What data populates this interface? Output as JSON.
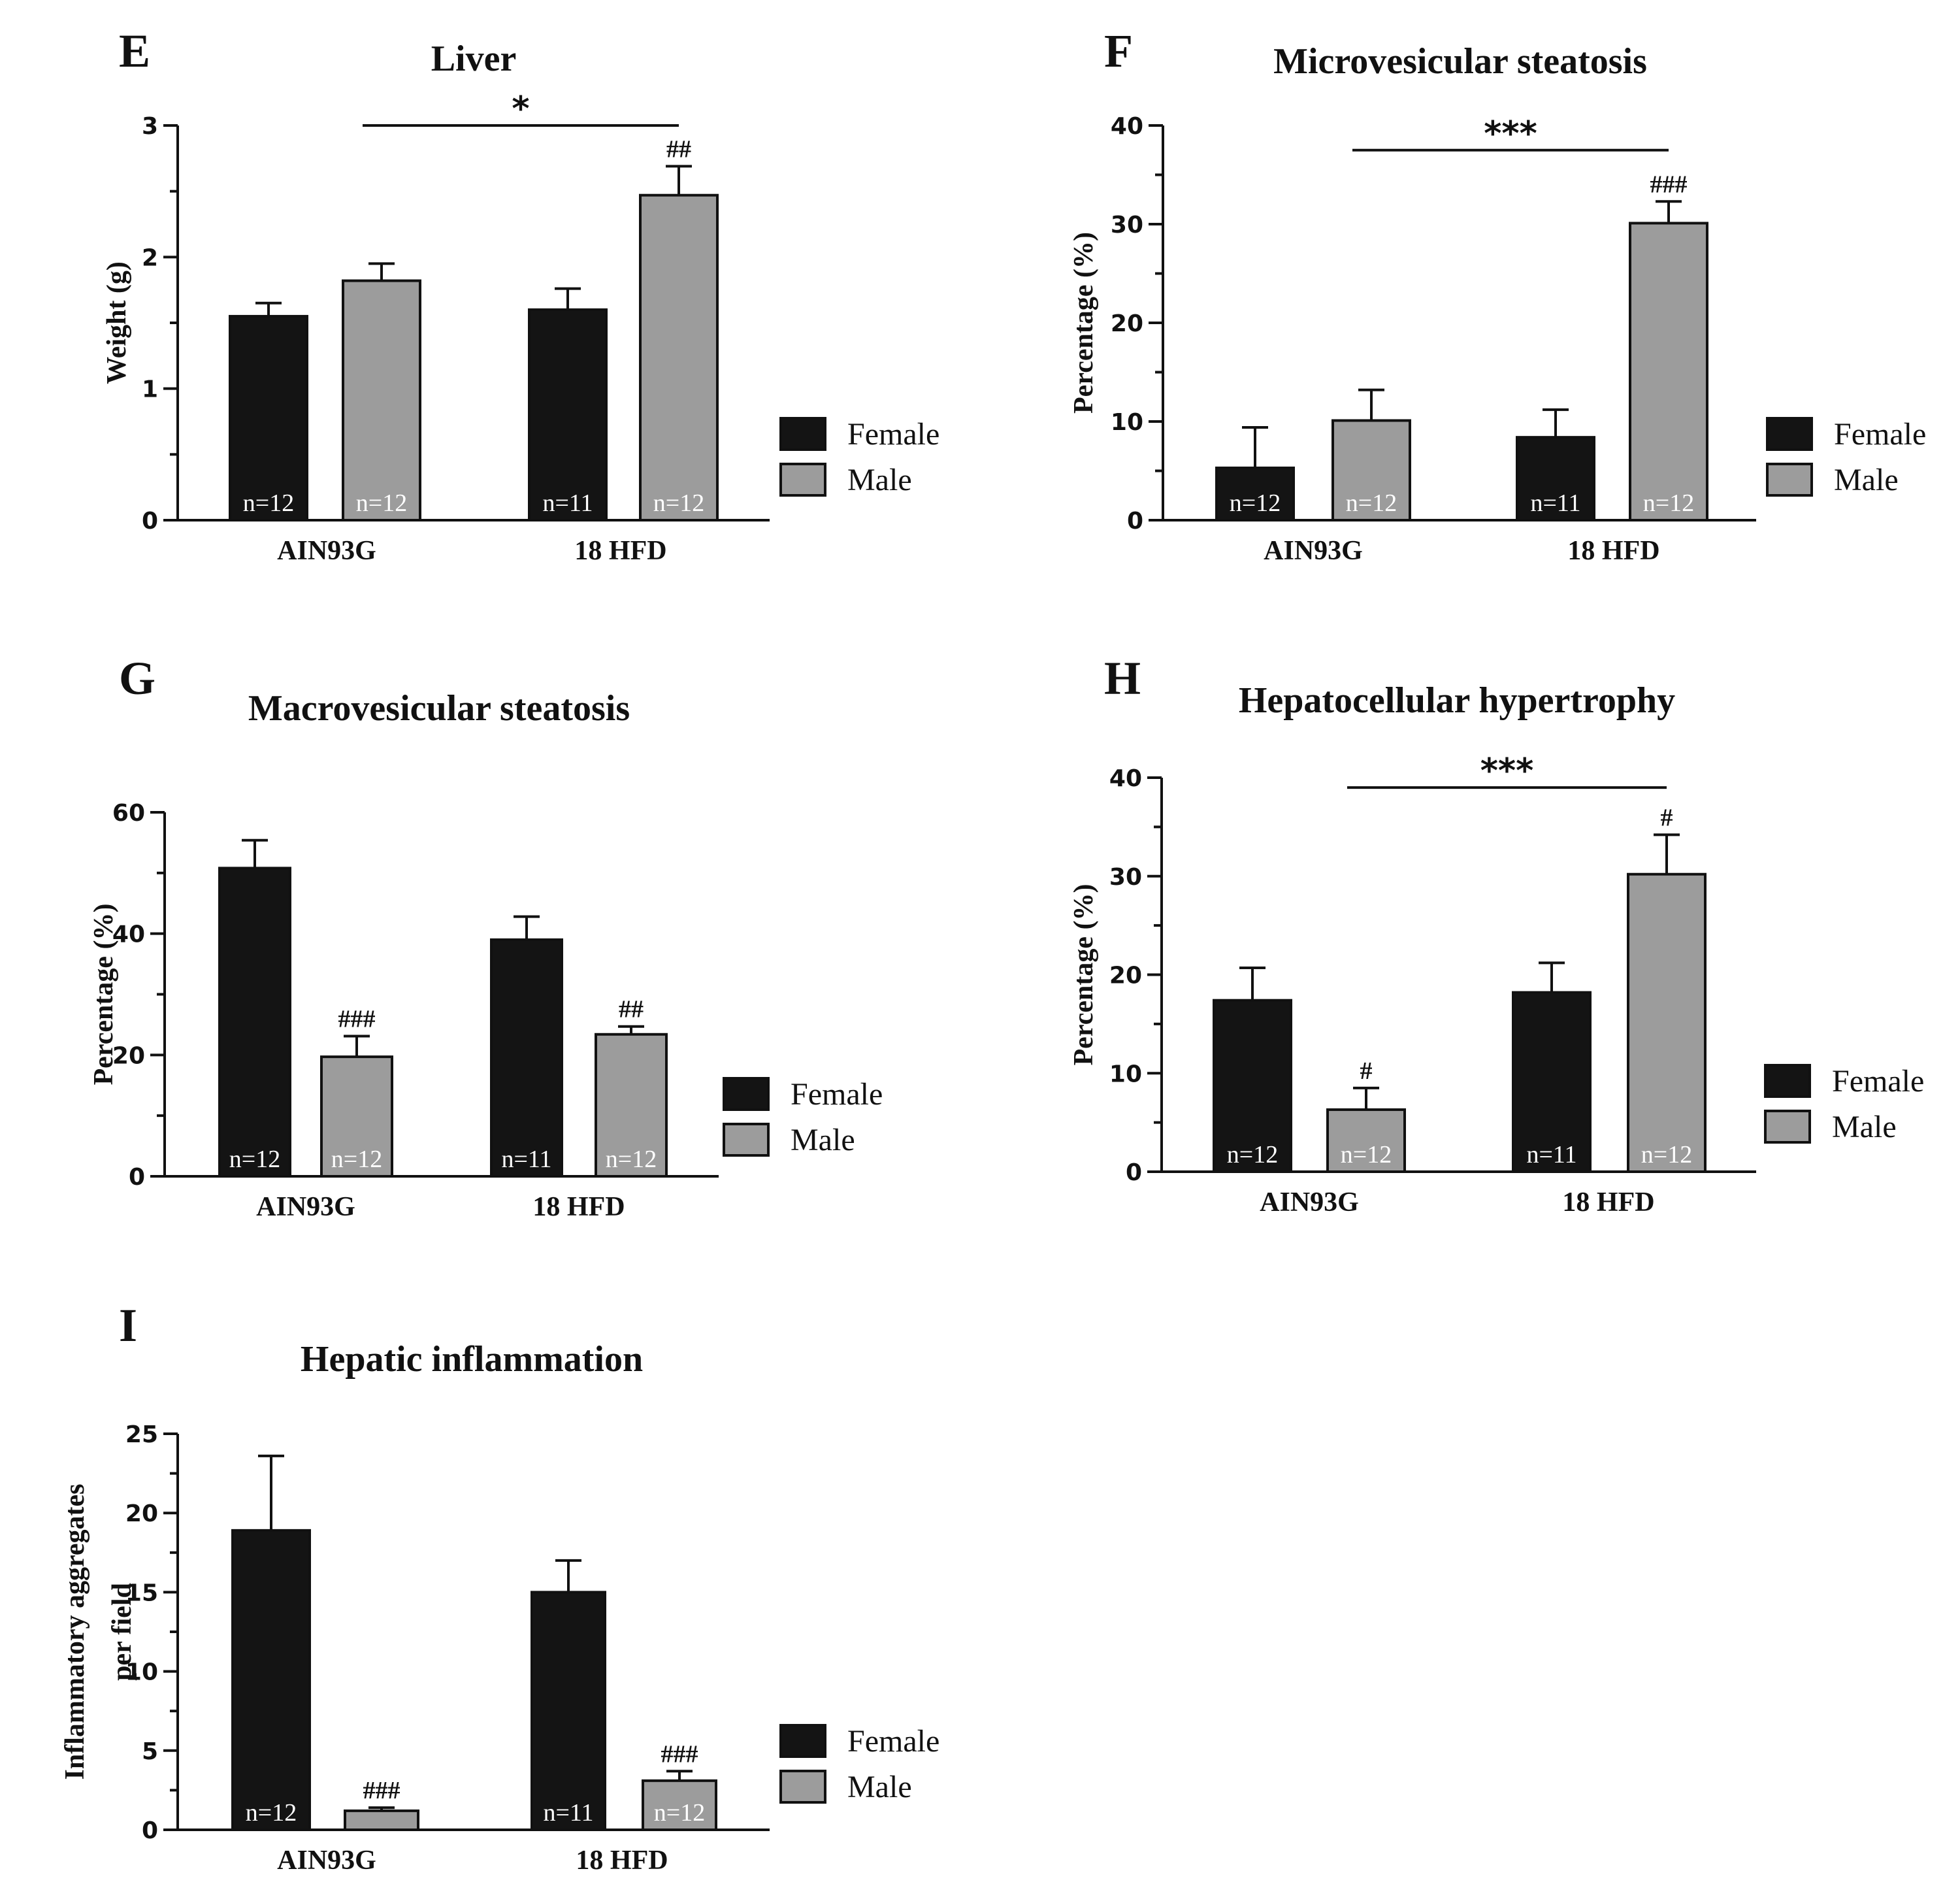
{
  "colors": {
    "female": "#141414",
    "male": "#9c9c9c",
    "axis": "#111111",
    "female_label_text": "#ffffff",
    "male_label_text": "#ffffff"
  },
  "chart_data": [
    {
      "panel": "E",
      "type": "bar",
      "title": "Liver",
      "xlabel": "",
      "ylabel": "Weight (g)",
      "ylim": [
        0,
        3
      ],
      "yticks": [
        "0",
        "1",
        "2",
        "3"
      ],
      "ytick_values": [
        0,
        1,
        2,
        3
      ],
      "categories": [
        "AIN93G",
        "18 HFD"
      ],
      "series": [
        {
          "name": "Female",
          "values": [
            1.55,
            1.6
          ],
          "errors": [
            0.1,
            0.16
          ],
          "n": [
            "n=12",
            "n=11"
          ],
          "annotations": [
            "",
            ""
          ]
        },
        {
          "name": "Male",
          "values": [
            1.82,
            2.47
          ],
          "errors": [
            0.13,
            0.22
          ],
          "n": [
            "n=12",
            "n=12"
          ],
          "annotations": [
            "",
            "##"
          ]
        }
      ],
      "comparison": {
        "from": "AIN93G",
        "to": "18 HFD",
        "label": "*",
        "y": 3.0
      },
      "legend": [
        "Female",
        "Male"
      ]
    },
    {
      "panel": "F",
      "type": "bar",
      "title": "Microvesicular steatosis",
      "xlabel": "",
      "ylabel": "Percentage (%)",
      "ylim": [
        0,
        40
      ],
      "yticks": [
        "0",
        "10",
        "20",
        "30",
        "40"
      ],
      "ytick_values": [
        0,
        10,
        20,
        30,
        40
      ],
      "categories": [
        "AIN93G",
        "18 HFD"
      ],
      "series": [
        {
          "name": "Female",
          "values": [
            5.3,
            8.4
          ],
          "errors": [
            4.1,
            2.8
          ],
          "n": [
            "n=12",
            "n=11"
          ],
          "annotations": [
            "",
            ""
          ]
        },
        {
          "name": "Male",
          "values": [
            10.1,
            30.1
          ],
          "errors": [
            3.1,
            2.2
          ],
          "n": [
            "n=12",
            "n=12"
          ],
          "annotations": [
            "",
            "###"
          ]
        }
      ],
      "comparison": {
        "from": "AIN93G",
        "to": "18 HFD",
        "label": "***",
        "y": 37.5
      },
      "legend": [
        "Female",
        "Male"
      ]
    },
    {
      "panel": "G",
      "type": "bar",
      "title": "Macrovesicular steatosis",
      "xlabel": "",
      "ylabel": "Percentage (%)",
      "ylim": [
        0,
        60
      ],
      "yticks": [
        "0",
        "20",
        "40",
        "60"
      ],
      "ytick_values": [
        0,
        20,
        40,
        60
      ],
      "categories": [
        "AIN93G",
        "18 HFD"
      ],
      "series": [
        {
          "name": "Female",
          "values": [
            50.8,
            39.0
          ],
          "errors": [
            4.6,
            3.8
          ],
          "n": [
            "n=12",
            "n=11"
          ],
          "annotations": [
            "",
            ""
          ]
        },
        {
          "name": "Male",
          "values": [
            19.7,
            23.4
          ],
          "errors": [
            3.4,
            1.3
          ],
          "n": [
            "n=12",
            "n=12"
          ],
          "annotations": [
            "###",
            "##"
          ]
        }
      ],
      "legend": [
        "Female",
        "Male"
      ]
    },
    {
      "panel": "H",
      "type": "bar",
      "title": "Hepatocellular hypertrophy",
      "xlabel": "",
      "ylabel": "Percentage (%)",
      "ylim": [
        0,
        40
      ],
      "yticks": [
        "0",
        "10",
        "20",
        "30",
        "40"
      ],
      "ytick_values": [
        0,
        10,
        20,
        30,
        40
      ],
      "categories": [
        "AIN93G",
        "18 HFD"
      ],
      "series": [
        {
          "name": "Female",
          "values": [
            17.4,
            18.2
          ],
          "errors": [
            3.3,
            3.0
          ],
          "n": [
            "n=12",
            "n=11"
          ],
          "annotations": [
            "",
            ""
          ]
        },
        {
          "name": "Male",
          "values": [
            6.3,
            30.2
          ],
          "errors": [
            2.2,
            4.0
          ],
          "n": [
            "n=12",
            "n=12"
          ],
          "annotations": [
            "#",
            "#"
          ]
        }
      ],
      "comparison": {
        "from": "AIN93G",
        "to": "18 HFD",
        "label": "***",
        "y": 39.0
      },
      "legend": [
        "Female",
        "Male"
      ]
    },
    {
      "panel": "I",
      "type": "bar",
      "title": "Hepatic inflammation",
      "xlabel": "",
      "ylabel": "Inflammatory aggregates per field",
      "ylabel_lines": [
        "Inflammatory aggregates",
        "per field"
      ],
      "ylim": [
        0,
        25
      ],
      "yticks": [
        "0",
        "5",
        "10",
        "15",
        "20",
        "25"
      ],
      "ytick_values": [
        0,
        5,
        10,
        15,
        20,
        25
      ],
      "categories": [
        "AIN93G",
        "18 HFD"
      ],
      "series": [
        {
          "name": "Female",
          "values": [
            18.9,
            15.0
          ],
          "errors": [
            4.7,
            2.0
          ],
          "n": [
            "n=12",
            "n=11"
          ],
          "annotations": [
            "",
            ""
          ]
        },
        {
          "name": "Male",
          "values": [
            1.2,
            3.1
          ],
          "errors": [
            0.2,
            0.6
          ],
          "n": [
            "",
            "n=12"
          ],
          "annotations": [
            "###",
            "###"
          ]
        }
      ],
      "legend": [
        "Female",
        "Male"
      ]
    }
  ]
}
